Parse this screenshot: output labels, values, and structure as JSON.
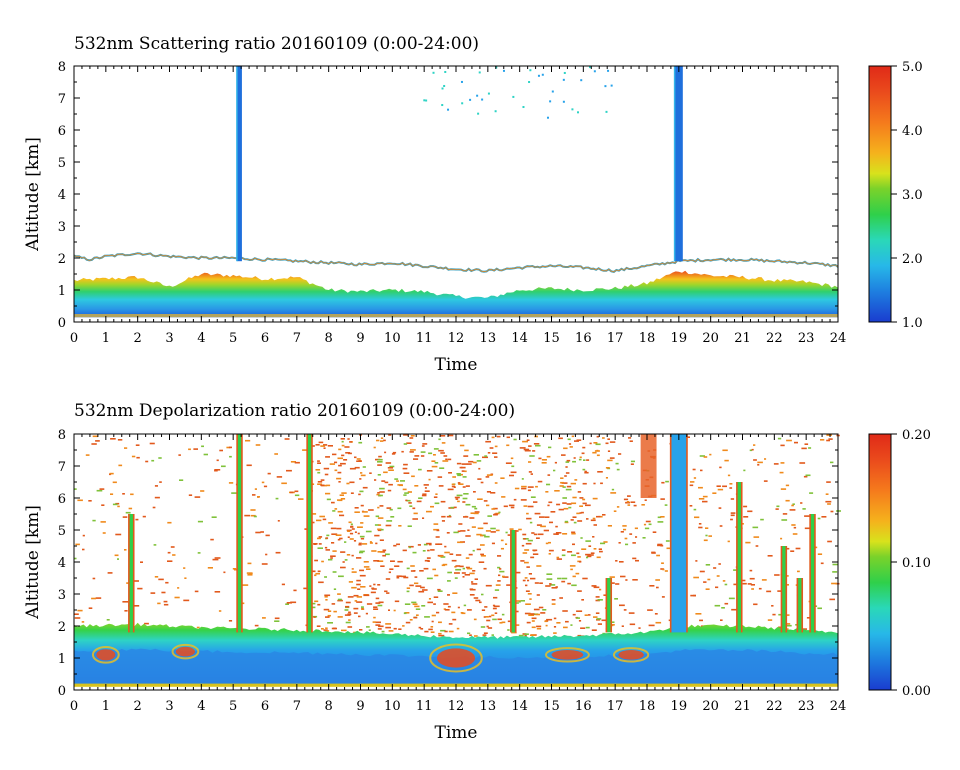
{
  "chart_data": [
    {
      "type": "heatmap",
      "title": "532nm Scattering ratio  20160109 (0:00-24:00)",
      "xlabel": "Time",
      "ylabel": "Altitude [km]",
      "xlim": [
        0,
        24
      ],
      "ylim": [
        0,
        8
      ],
      "x_ticks": [
        "0",
        "1",
        "2",
        "3",
        "4",
        "5",
        "6",
        "7",
        "8",
        "9",
        "10",
        "11",
        "12",
        "13",
        "14",
        "15",
        "16",
        "17",
        "18",
        "19",
        "20",
        "21",
        "22",
        "23",
        "24"
      ],
      "y_ticks": [
        "0",
        "1",
        "2",
        "3",
        "4",
        "5",
        "6",
        "7",
        "8"
      ],
      "colorbar": {
        "min": 1.0,
        "max": 5.0,
        "ticks": [
          "1.0",
          "2.0",
          "3.0",
          "4.0",
          "5.0"
        ]
      },
      "features": {
        "boundary_layer_top_km": [
          [
            0,
            2.05
          ],
          [
            0.5,
            1.95
          ],
          [
            1,
            2.05
          ],
          [
            2,
            2.15
          ],
          [
            3,
            2.05
          ],
          [
            4,
            2.0
          ],
          [
            5,
            2.0
          ],
          [
            6,
            1.95
          ],
          [
            7,
            1.9
          ],
          [
            8,
            1.85
          ],
          [
            9,
            1.8
          ],
          [
            10,
            1.85
          ],
          [
            11,
            1.75
          ],
          [
            12,
            1.65
          ],
          [
            13,
            1.6
          ],
          [
            14,
            1.7
          ],
          [
            15,
            1.75
          ],
          [
            16,
            1.7
          ],
          [
            17,
            1.6
          ],
          [
            18,
            1.75
          ],
          [
            19,
            1.9
          ],
          [
            20,
            1.95
          ],
          [
            21,
            1.95
          ],
          [
            22,
            1.9
          ],
          [
            23,
            1.85
          ],
          [
            24,
            1.75
          ]
        ],
        "aerosol_layer_top_km": [
          [
            0,
            1.3
          ],
          [
            1,
            1.35
          ],
          [
            2,
            1.4
          ],
          [
            3,
            1.1
          ],
          [
            4,
            1.5
          ],
          [
            5,
            1.45
          ],
          [
            6,
            1.35
          ],
          [
            7,
            1.4
          ],
          [
            8,
            1.0
          ],
          [
            9,
            0.95
          ],
          [
            10,
            1.0
          ],
          [
            11,
            0.95
          ],
          [
            12,
            0.8
          ],
          [
            13,
            0.75
          ],
          [
            14,
            1.0
          ],
          [
            15,
            1.05
          ],
          [
            16,
            1.0
          ],
          [
            17,
            1.05
          ],
          [
            18,
            1.2
          ],
          [
            19,
            1.6
          ],
          [
            20,
            1.45
          ],
          [
            21,
            1.4
          ],
          [
            22,
            1.3
          ],
          [
            23,
            1.25
          ],
          [
            24,
            1.1
          ]
        ],
        "cloud_columns": [
          {
            "time": 5.2,
            "width": 0.15,
            "top_km": 8.0
          },
          {
            "time": 19.0,
            "width": 0.25,
            "top_km": 8.0
          }
        ]
      }
    },
    {
      "type": "heatmap",
      "title": "532nm Depolarization ratio  20160109 (0:00-24:00)",
      "xlabel": "Time",
      "ylabel": "Altitude [km]",
      "xlim": [
        0,
        24
      ],
      "ylim": [
        0,
        8
      ],
      "x_ticks": [
        "0",
        "1",
        "2",
        "3",
        "4",
        "5",
        "6",
        "7",
        "8",
        "9",
        "10",
        "11",
        "12",
        "13",
        "14",
        "15",
        "16",
        "17",
        "18",
        "19",
        "20",
        "21",
        "22",
        "23",
        "24"
      ],
      "y_ticks": [
        "0",
        "1",
        "2",
        "3",
        "4",
        "5",
        "6",
        "7",
        "8"
      ],
      "colorbar": {
        "min": 0.0,
        "max": 0.2,
        "ticks": [
          "0.00",
          "0.10",
          "0.20"
        ]
      },
      "features": {
        "layer_top_km": [
          [
            0,
            2.0
          ],
          [
            2,
            2.05
          ],
          [
            4,
            1.95
          ],
          [
            6,
            1.9
          ],
          [
            8,
            1.85
          ],
          [
            10,
            1.75
          ],
          [
            12,
            1.65
          ],
          [
            14,
            1.65
          ],
          [
            16,
            1.7
          ],
          [
            18,
            1.8
          ],
          [
            19,
            2.0
          ],
          [
            21,
            2.0
          ],
          [
            24,
            1.8
          ]
        ],
        "high_depol_patches": [
          {
            "time": 1.0,
            "alt": 1.1,
            "w": 0.6,
            "h": 0.35
          },
          {
            "time": 3.5,
            "alt": 1.2,
            "w": 0.6,
            "h": 0.3
          },
          {
            "time": 12.0,
            "alt": 1.0,
            "w": 1.2,
            "h": 0.6
          },
          {
            "time": 15.5,
            "alt": 1.1,
            "w": 1.0,
            "h": 0.3
          },
          {
            "time": 17.5,
            "alt": 1.1,
            "w": 0.8,
            "h": 0.3
          }
        ],
        "plumes": [
          {
            "time": 1.8,
            "top_km": 5.5
          },
          {
            "time": 5.2,
            "top_km": 8.0
          },
          {
            "time": 7.4,
            "top_km": 8.0
          },
          {
            "time": 13.8,
            "top_km": 5.0
          },
          {
            "time": 16.8,
            "top_km": 3.5
          },
          {
            "time": 19.0,
            "top_km": 8.0
          },
          {
            "time": 20.9,
            "top_km": 6.5
          },
          {
            "time": 22.3,
            "top_km": 4.5
          },
          {
            "time": 22.8,
            "top_km": 3.5
          },
          {
            "time": 23.2,
            "top_km": 5.5
          }
        ],
        "cloud_block": {
          "t0": 17.8,
          "t1": 18.3,
          "alt0": 6.0,
          "alt1": 8.0
        }
      }
    }
  ]
}
